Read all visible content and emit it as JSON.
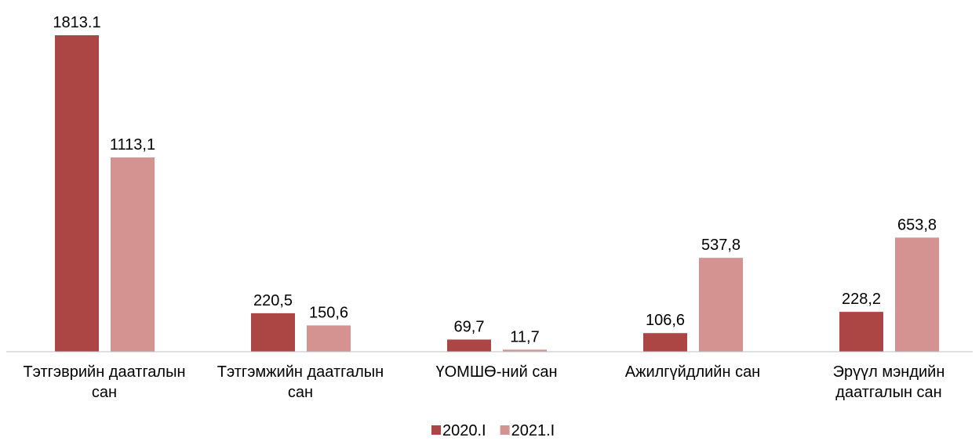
{
  "chart_data": {
    "type": "bar",
    "categories": [
      "Тэтгэврийн даатгалын сан",
      "Тэтгэмжийн даатгалын сан",
      "ҮОМШӨ-ний сан",
      "Ажилгүйдлийн сан",
      "Эрүүл мэндийн даатгалын сан"
    ],
    "series": [
      {
        "name": "2020.I",
        "color": "#ab4644",
        "values": [
          1813.1,
          220.5,
          69.7,
          106.6,
          228.2
        ],
        "value_labels": [
          "1813.1",
          "220,5",
          "69,7",
          "106,6",
          "228,2"
        ]
      },
      {
        "name": "2021.I",
        "color": "#d49391",
        "values": [
          1113.1,
          150.6,
          11.7,
          537.8,
          653.8
        ],
        "value_labels": [
          "1113,1",
          "150,6",
          "11,7",
          "537,8",
          "653,8"
        ]
      }
    ],
    "legend": "bottom"
  }
}
